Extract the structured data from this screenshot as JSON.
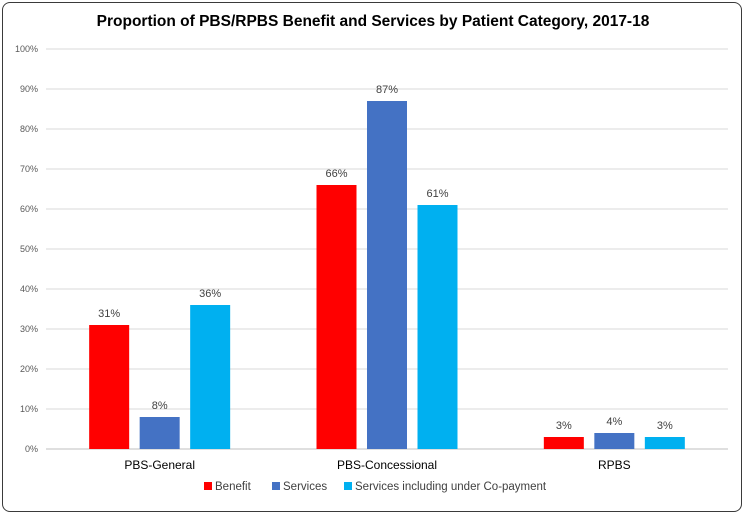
{
  "chart_data": {
    "type": "bar",
    "title": "Proportion of PBS/RPBS Benefit and Services by Patient Category, 2017-18",
    "categories": [
      "PBS-General",
      "PBS-Concessional",
      "RPBS"
    ],
    "series": [
      {
        "name": "Benefit",
        "color": "#ff0000",
        "values": [
          31,
          66,
          3
        ],
        "labels": [
          "31%",
          "66%",
          "3%"
        ]
      },
      {
        "name": "Services",
        "color": "#4472c4",
        "values": [
          8,
          87,
          4
        ],
        "labels": [
          "8%",
          "87%",
          "4%"
        ]
      },
      {
        "name": "Services including under Co-payment",
        "color": "#00b0f0",
        "values": [
          36,
          61,
          3
        ],
        "labels": [
          "36%",
          "61%",
          "3%"
        ]
      }
    ],
    "ylim": [
      0,
      100
    ],
    "yticks": [
      "0%",
      "10%",
      "20%",
      "30%",
      "40%",
      "50%",
      "60%",
      "70%",
      "80%",
      "90%",
      "100%"
    ],
    "grid": true,
    "legend_position": "bottom",
    "xlabel": "",
    "ylabel": ""
  }
}
